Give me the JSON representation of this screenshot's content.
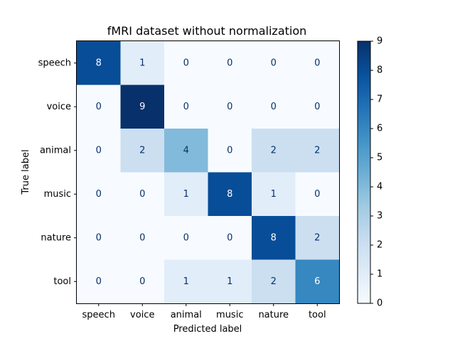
{
  "chart_data": {
    "type": "heatmap",
    "title": "fMRI dataset without normalization",
    "xlabel": "Predicted label",
    "ylabel": "True label",
    "x_categories": [
      "speech",
      "voice",
      "animal",
      "music",
      "nature",
      "tool"
    ],
    "y_categories": [
      "speech",
      "voice",
      "animal",
      "music",
      "nature",
      "tool"
    ],
    "matrix": [
      [
        8,
        1,
        0,
        0,
        0,
        0
      ],
      [
        0,
        9,
        0,
        0,
        0,
        0
      ],
      [
        0,
        2,
        4,
        0,
        2,
        2
      ],
      [
        0,
        0,
        1,
        8,
        1,
        0
      ],
      [
        0,
        0,
        0,
        0,
        8,
        2
      ],
      [
        0,
        0,
        1,
        1,
        2,
        6
      ]
    ],
    "colorbar": {
      "min": 0,
      "max": 9,
      "ticks": [
        "0",
        "1",
        "2",
        "3",
        "4",
        "5",
        "6",
        "7",
        "8",
        "9"
      ]
    },
    "colormap": "Blues"
  }
}
